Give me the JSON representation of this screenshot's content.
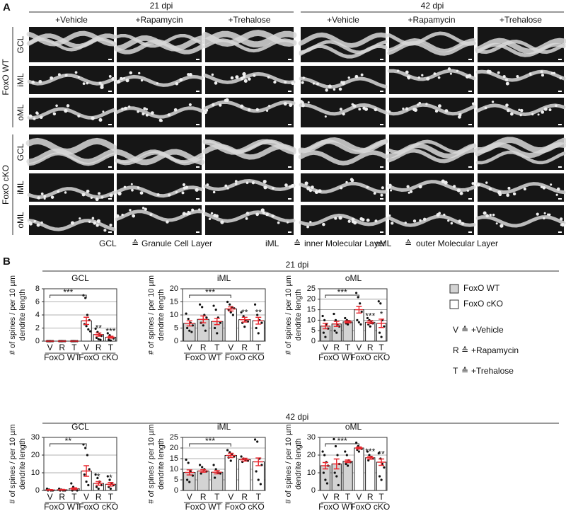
{
  "figure": {
    "panel_a": {
      "label": "A",
      "timepoints": [
        {
          "title": "21 dpi",
          "columns": [
            "+Vehicle",
            "+Rapamycin",
            "+Trehalose"
          ]
        },
        {
          "title": "42 dpi",
          "columns": [
            "+Vehicle",
            "+Rapamycin",
            "+Trehalose"
          ]
        }
      ],
      "genotypes": [
        {
          "title": "FoxO WT",
          "layers": [
            "GCL",
            "iML",
            "oML"
          ]
        },
        {
          "title": "FoxO cKO",
          "layers": [
            "GCL",
            "iML",
            "oML"
          ]
        }
      ],
      "layer_key": [
        {
          "abbr": "GCL",
          "symbol": "≙",
          "name": "Granule Cell Layer"
        },
        {
          "abbr": "iML",
          "symbol": "≙",
          "name": "inner Molecular Layer"
        },
        {
          "abbr": "oML",
          "symbol": "≙",
          "name": "outer Molecular Layer"
        }
      ]
    },
    "panel_b": {
      "label": "B",
      "rows": [
        "21 dpi",
        "42 dpi"
      ],
      "legend": {
        "groups": [
          {
            "name": "FoxO WT",
            "color": "#d3d3d3"
          },
          {
            "name": "FoxO cKO",
            "color": "#ffffff"
          }
        ],
        "key": [
          {
            "abbr": "V",
            "symbol": "≙",
            "name": "+Vehicle"
          },
          {
            "abbr": "R",
            "symbol": "≙",
            "name": "+Rapamycin"
          },
          {
            "abbr": "T",
            "symbol": "≙",
            "name": "+Trehalose"
          }
        ]
      }
    }
  },
  "chart_data": [
    {
      "type": "bar",
      "title": "GCL",
      "ylabel": [
        "# of spines / per 10 µm",
        "dendrite length"
      ],
      "categories": [
        "V",
        "R",
        "T",
        "V",
        "R",
        "T"
      ],
      "groups": [
        "FoxO WT",
        "FoxO cKO"
      ],
      "values": [
        0,
        0,
        0,
        3.1,
        1.0,
        0.6
      ],
      "errors": [
        0,
        0,
        0,
        0.55,
        0.25,
        0.15
      ],
      "points": [
        [
          0,
          0,
          0,
          0,
          0,
          0
        ],
        [
          0,
          0,
          0,
          0,
          0,
          0
        ],
        [
          0,
          0,
          0,
          0,
          0,
          0
        ],
        [
          7.0,
          6.6,
          4.0,
          3.2,
          2.6,
          2.3,
          1.8,
          1.5
        ],
        [
          1.9,
          1.4,
          1.0,
          0.8,
          0.5,
          0.3,
          0.2
        ],
        [
          1.2,
          0.9,
          0.6,
          0.4,
          0.2,
          0.1
        ]
      ],
      "ylim": [
        0,
        8
      ],
      "yticks": [
        0,
        2,
        4,
        6,
        8
      ],
      "grid": true,
      "error_color": "#e8262d",
      "annotation_color": "#29a9e1",
      "bracket_label": "***",
      "bar_labels": [
        {
          "category": 4,
          "label": "**"
        },
        {
          "category": 5,
          "label": "***"
        }
      ]
    },
    {
      "type": "bar",
      "title": "iML",
      "ylabel": [
        "# of spines / per 10 µm",
        "dendrite length"
      ],
      "categories": [
        "V",
        "R",
        "T",
        "V",
        "R",
        "T"
      ],
      "groups": [
        "FoxO WT",
        "FoxO cKO"
      ],
      "values": [
        6.8,
        8.3,
        7.5,
        12.3,
        8.2,
        7.8
      ],
      "errors": [
        1,
        1.3,
        1.2,
        0.8,
        0.9,
        1.3
      ],
      "points": [
        [
          10.5,
          8.5,
          7,
          6,
          5,
          4,
          3.5
        ],
        [
          14,
          13,
          10,
          9,
          7,
          6,
          4
        ],
        [
          13.5,
          12,
          9,
          7,
          5,
          3
        ],
        [
          15,
          14,
          13,
          12.5,
          12,
          11,
          10
        ],
        [
          11,
          9.5,
          8,
          7.5,
          7,
          5.5
        ],
        [
          14,
          10,
          8,
          7,
          5,
          3
        ]
      ],
      "ylim": [
        0,
        20
      ],
      "yticks": [
        0,
        5,
        10,
        15,
        20
      ],
      "grid": true,
      "error_color": "#e8262d",
      "annotation_color": "#29a9e1",
      "bracket_label": "***",
      "bar_labels": [
        {
          "category": 4,
          "label": "**"
        },
        {
          "category": 5,
          "label": "**"
        }
      ]
    },
    {
      "type": "bar",
      "title": "oML",
      "ylabel": [
        "# of spines / per 10 µm",
        "dendrite length"
      ],
      "categories": [
        "V",
        "R",
        "T",
        "V",
        "R",
        "T"
      ],
      "groups": [
        "FoxO WT",
        "FoxO cKO"
      ],
      "values": [
        7.2,
        8.2,
        9.2,
        15,
        9,
        8.5
      ],
      "errors": [
        1.3,
        1.2,
        0.5,
        1.6,
        0.7,
        2
      ],
      "points": [
        [
          12,
          10,
          8,
          6,
          4,
          2
        ],
        [
          13,
          10,
          8,
          7,
          5,
          4
        ],
        [
          11,
          10,
          9.5,
          9,
          8.5,
          8
        ],
        [
          23,
          21,
          18,
          14,
          10,
          9,
          8
        ],
        [
          11,
          10,
          9,
          8.5,
          8,
          7
        ],
        [
          19,
          18,
          10,
          7,
          4,
          2
        ]
      ],
      "ylim": [
        0,
        25
      ],
      "yticks": [
        0,
        5,
        10,
        15,
        20,
        25
      ],
      "grid": true,
      "error_color": "#e8262d",
      "annotation_color": "#29a9e1",
      "bracket_label": "***",
      "bar_labels": [
        {
          "category": 4,
          "label": "***"
        },
        {
          "category": 5,
          "label": "*"
        }
      ]
    },
    {
      "type": "bar",
      "title": "GCL",
      "ylabel": [
        "# of spines / per 10 µm",
        "dendrite length"
      ],
      "categories": [
        "V",
        "R",
        "T",
        "V",
        "R",
        "T"
      ],
      "groups": [
        "FoxO WT",
        "FoxO cKO"
      ],
      "values": [
        0.3,
        0.4,
        1.0,
        11,
        4,
        3.5
      ],
      "errors": [
        0.2,
        0.2,
        0.5,
        3,
        1,
        1
      ],
      "points": [
        [
          1,
          0.5,
          0,
          0,
          0
        ],
        [
          1,
          0.5,
          0,
          0,
          0
        ],
        [
          4,
          2,
          1,
          0,
          0
        ],
        [
          26,
          24,
          20,
          12,
          9,
          5,
          3
        ],
        [
          9,
          7,
          5,
          3,
          2,
          1
        ],
        [
          8,
          6,
          4,
          3,
          2,
          1
        ]
      ],
      "ylim": [
        0,
        30
      ],
      "yticks": [
        0,
        10,
        20,
        30
      ],
      "grid": true,
      "error_color": "#e8262d",
      "annotation_color": "#29a9e1",
      "bracket_label": "**",
      "bar_labels": [
        {
          "category": 4,
          "label": "*"
        },
        {
          "category": 5,
          "label": "*"
        }
      ]
    },
    {
      "type": "bar",
      "title": "iML",
      "ylabel": [
        "# of spines / per 10 µm",
        "dendrite length"
      ],
      "categories": [
        "V",
        "R",
        "T",
        "V",
        "R",
        "T"
      ],
      "groups": [
        "FoxO WT",
        "FoxO cKO"
      ],
      "values": [
        8.5,
        9.2,
        8.6,
        16.5,
        14.5,
        13.5
      ],
      "errors": [
        1.2,
        0.6,
        0.8,
        1,
        0.7,
        1.8
      ],
      "points": [
        [
          14.5,
          13,
          9,
          7,
          5,
          4
        ],
        [
          12,
          11,
          10,
          9,
          8
        ],
        [
          12,
          10,
          8.5,
          8,
          6
        ],
        [
          19,
          18,
          17,
          16,
          15.5,
          14
        ],
        [
          16,
          15,
          14.5,
          14,
          13.5
        ],
        [
          24,
          23,
          15,
          12,
          9,
          5,
          3
        ]
      ],
      "ylim": [
        0,
        25
      ],
      "yticks": [
        0,
        5,
        10,
        15,
        20,
        25
      ],
      "grid": true,
      "error_color": "#e8262d",
      "annotation_color": "#29a9e1",
      "bracket_label": "***",
      "bar_labels": []
    },
    {
      "type": "bar",
      "title": "oML",
      "ylabel": [
        "# of spines / per 10 µm",
        "dendrite length"
      ],
      "categories": [
        "V",
        "R",
        "T",
        "V",
        "R",
        "T"
      ],
      "groups": [
        "FoxO WT",
        "FoxO cKO"
      ],
      "values": [
        14,
        15,
        16.5,
        24,
        18.5,
        16
      ],
      "errors": [
        1.8,
        2.8,
        0.7,
        0.6,
        0.8,
        1.8
      ],
      "points": [
        [
          22,
          20,
          16,
          14,
          10,
          6,
          4
        ],
        [
          29,
          25,
          20,
          15,
          10,
          8,
          3
        ],
        [
          22,
          20,
          17,
          16,
          15,
          14
        ],
        [
          27,
          25,
          24,
          23.5,
          23,
          22
        ],
        [
          22,
          20,
          19,
          18,
          17
        ],
        [
          21,
          18,
          15,
          13,
          8,
          6
        ]
      ],
      "ylim": [
        0,
        30
      ],
      "yticks": [
        0,
        10,
        20,
        30
      ],
      "grid": true,
      "error_color": "#e8262d",
      "annotation_color": "#29a9e1",
      "bracket_label": "***",
      "bar_labels": [
        {
          "category": 4,
          "label": "***"
        },
        {
          "category": 5,
          "label": "**"
        }
      ]
    }
  ]
}
